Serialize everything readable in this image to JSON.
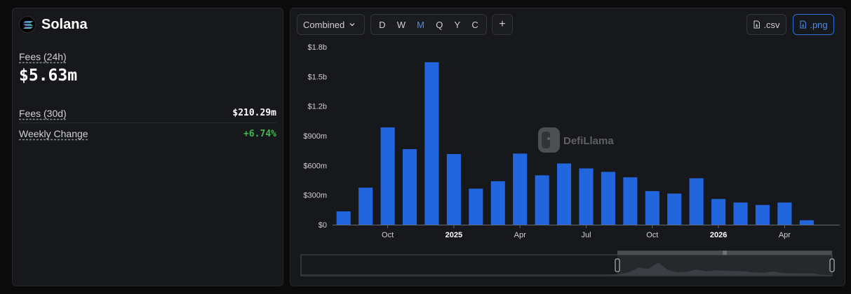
{
  "protocol": {
    "name": "Solana"
  },
  "stats": {
    "fees24h_label": "Fees (24h)",
    "fees24h_value": "$5.63m",
    "fees30d_label": "Fees (30d)",
    "fees30d_value": "$210.29m",
    "weekly_label": "Weekly Change",
    "weekly_value": "+6.74%"
  },
  "toolbar": {
    "mode_select": "Combined",
    "groupings": [
      "D",
      "W",
      "M",
      "Q",
      "Y",
      "C"
    ],
    "active_grouping": "M",
    "add_label": "+",
    "csv_label": ".csv",
    "png_label": ".png"
  },
  "watermark": "DefiLlama",
  "colors": {
    "bar": "#2266dd",
    "accent": "#4a8de8",
    "positive": "#3fb950"
  },
  "chart_data": {
    "type": "bar",
    "x": [
      "2024-08",
      "2024-09",
      "2024-10",
      "2024-11",
      "2024-12",
      "2025-01",
      "2025-02",
      "2025-03",
      "2025-04",
      "2025-05",
      "2025-06",
      "2025-07",
      "2025-08",
      "2025-09",
      "2025-10",
      "2025-11",
      "2025-12",
      "2026-01",
      "2026-02",
      "2026-03",
      "2026-04",
      "2026-05",
      "2026-06"
    ],
    "values": [
      135,
      375,
      985,
      765,
      1645,
      715,
      365,
      440,
      720,
      500,
      620,
      570,
      535,
      480,
      340,
      315,
      470,
      260,
      225,
      200,
      225,
      45,
      0
    ],
    "unit": "millions USD",
    "yticks": [
      "$0",
      "$300m",
      "$600m",
      "$900m",
      "$1.2b",
      "$1.5b",
      "$1.8b"
    ],
    "ylim": [
      0,
      1800
    ],
    "xtick_labels": [
      {
        "at": "2024-10",
        "label": "Oct",
        "bold": false
      },
      {
        "at": "2025-01",
        "label": "2025",
        "bold": true
      },
      {
        "at": "2025-04",
        "label": "Apr",
        "bold": false
      },
      {
        "at": "2025-07",
        "label": "Jul",
        "bold": false
      },
      {
        "at": "2025-10",
        "label": "Oct",
        "bold": false
      },
      {
        "at": "2026-01",
        "label": "2026",
        "bold": true
      },
      {
        "at": "2026-04",
        "label": "Apr",
        "bold": false
      }
    ],
    "grid": false,
    "legend": "none"
  }
}
